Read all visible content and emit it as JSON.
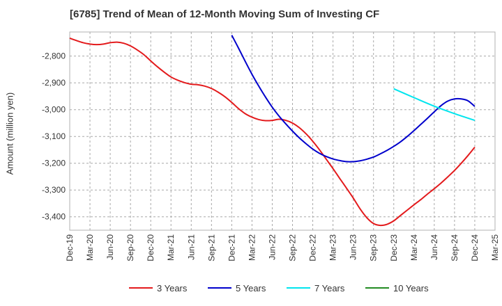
{
  "chart_data": {
    "type": "line",
    "title": "[6785]  Trend of Mean of 12-Month Moving Sum of Investing CF",
    "xlabel": "",
    "ylabel": "Amount (million yen)",
    "x_ticks": [
      "Dec-19",
      "Mar-20",
      "Jun-20",
      "Sep-20",
      "Dec-20",
      "Mar-21",
      "Jun-21",
      "Sep-21",
      "Dec-21",
      "Mar-22",
      "Jun-22",
      "Sep-22",
      "Dec-22",
      "Mar-23",
      "Jun-23",
      "Sep-23",
      "Dec-23",
      "Mar-24",
      "Jun-24",
      "Sep-24",
      "Dec-24",
      "Mar-25"
    ],
    "y_ticks": [
      -2800,
      -2900,
      -3000,
      -3100,
      -3200,
      -3300,
      -3400
    ],
    "ylim": [
      -3450,
      -2710
    ],
    "grid": true,
    "legend_position": "bottom",
    "series": [
      {
        "name": "3 Years",
        "color": "#e31a1c",
        "x": [
          "Dec-19",
          "Jan-20",
          "Feb-20",
          "Mar-20",
          "Apr-20",
          "May-20",
          "Jun-20",
          "Jul-20",
          "Aug-20",
          "Sep-20",
          "Oct-20",
          "Nov-20",
          "Dec-20",
          "Jan-21",
          "Feb-21",
          "Mar-21",
          "Apr-21",
          "May-21",
          "Jun-21",
          "Jul-21",
          "Aug-21",
          "Sep-21",
          "Oct-21",
          "Nov-21",
          "Dec-21",
          "Jan-22",
          "Feb-22",
          "Mar-22",
          "Apr-22",
          "May-22",
          "Jun-22",
          "Jul-22",
          "Aug-22",
          "Sep-22",
          "Oct-22",
          "Nov-22",
          "Dec-22",
          "Jan-23",
          "Feb-23",
          "Mar-23",
          "Apr-23",
          "May-23",
          "Jun-23",
          "Jul-23",
          "Aug-23",
          "Sep-23",
          "Oct-23",
          "Nov-23",
          "Dec-23",
          "Jan-24",
          "Feb-24",
          "Mar-24",
          "Apr-24",
          "May-24",
          "Jun-24",
          "Jul-24",
          "Aug-24",
          "Sep-24",
          "Oct-24",
          "Nov-24",
          "Dec-24"
        ],
        "values": [
          -2733,
          -2742,
          -2750,
          -2755,
          -2757,
          -2755,
          -2750,
          -2748,
          -2752,
          -2762,
          -2777,
          -2795,
          -2818,
          -2840,
          -2860,
          -2878,
          -2890,
          -2899,
          -2905,
          -2907,
          -2912,
          -2921,
          -2935,
          -2952,
          -2973,
          -2996,
          -3015,
          -3028,
          -3037,
          -3041,
          -3040,
          -3036,
          -3040,
          -3050,
          -3067,
          -3090,
          -3118,
          -3150,
          -3185,
          -3220,
          -3257,
          -3293,
          -3330,
          -3370,
          -3403,
          -3425,
          -3432,
          -3428,
          -3415,
          -3395,
          -3375,
          -3355,
          -3336,
          -3315,
          -3295,
          -3274,
          -3251,
          -3227,
          -3200,
          -3171,
          -3140
        ]
      },
      {
        "name": "5 Years",
        "color": "#0000cc",
        "x": [
          "Dec-21",
          "Jan-22",
          "Feb-22",
          "Mar-22",
          "Apr-22",
          "May-22",
          "Jun-22",
          "Jul-22",
          "Aug-22",
          "Sep-22",
          "Oct-22",
          "Nov-22",
          "Dec-22",
          "Jan-23",
          "Feb-23",
          "Mar-23",
          "Apr-23",
          "May-23",
          "Jun-23",
          "Jul-23",
          "Aug-23",
          "Sep-23",
          "Oct-23",
          "Nov-23",
          "Dec-23",
          "Jan-24",
          "Feb-24",
          "Mar-24",
          "Apr-24",
          "May-24",
          "Jun-24",
          "Jul-24",
          "Aug-24",
          "Sep-24",
          "Oct-24",
          "Nov-24",
          "Dec-24"
        ],
        "values": [
          -2722,
          -2770,
          -2820,
          -2868,
          -2912,
          -2953,
          -2991,
          -3024,
          -3053,
          -3080,
          -3105,
          -3127,
          -3147,
          -3163,
          -3175,
          -3184,
          -3190,
          -3194,
          -3194,
          -3191,
          -3185,
          -3177,
          -3165,
          -3152,
          -3137,
          -3120,
          -3100,
          -3078,
          -3055,
          -3032,
          -3008,
          -2985,
          -2968,
          -2960,
          -2960,
          -2967,
          -2988
        ]
      },
      {
        "name": "7 Years",
        "color": "#00e5ee",
        "x": [
          "Dec-23",
          "Mar-24",
          "Jun-24",
          "Sep-24",
          "Dec-24"
        ],
        "values": [
          -2922,
          -2955,
          -2987,
          -3015,
          -3040
        ]
      },
      {
        "name": "10 Years",
        "color": "#228b22",
        "x": [],
        "values": []
      }
    ]
  }
}
